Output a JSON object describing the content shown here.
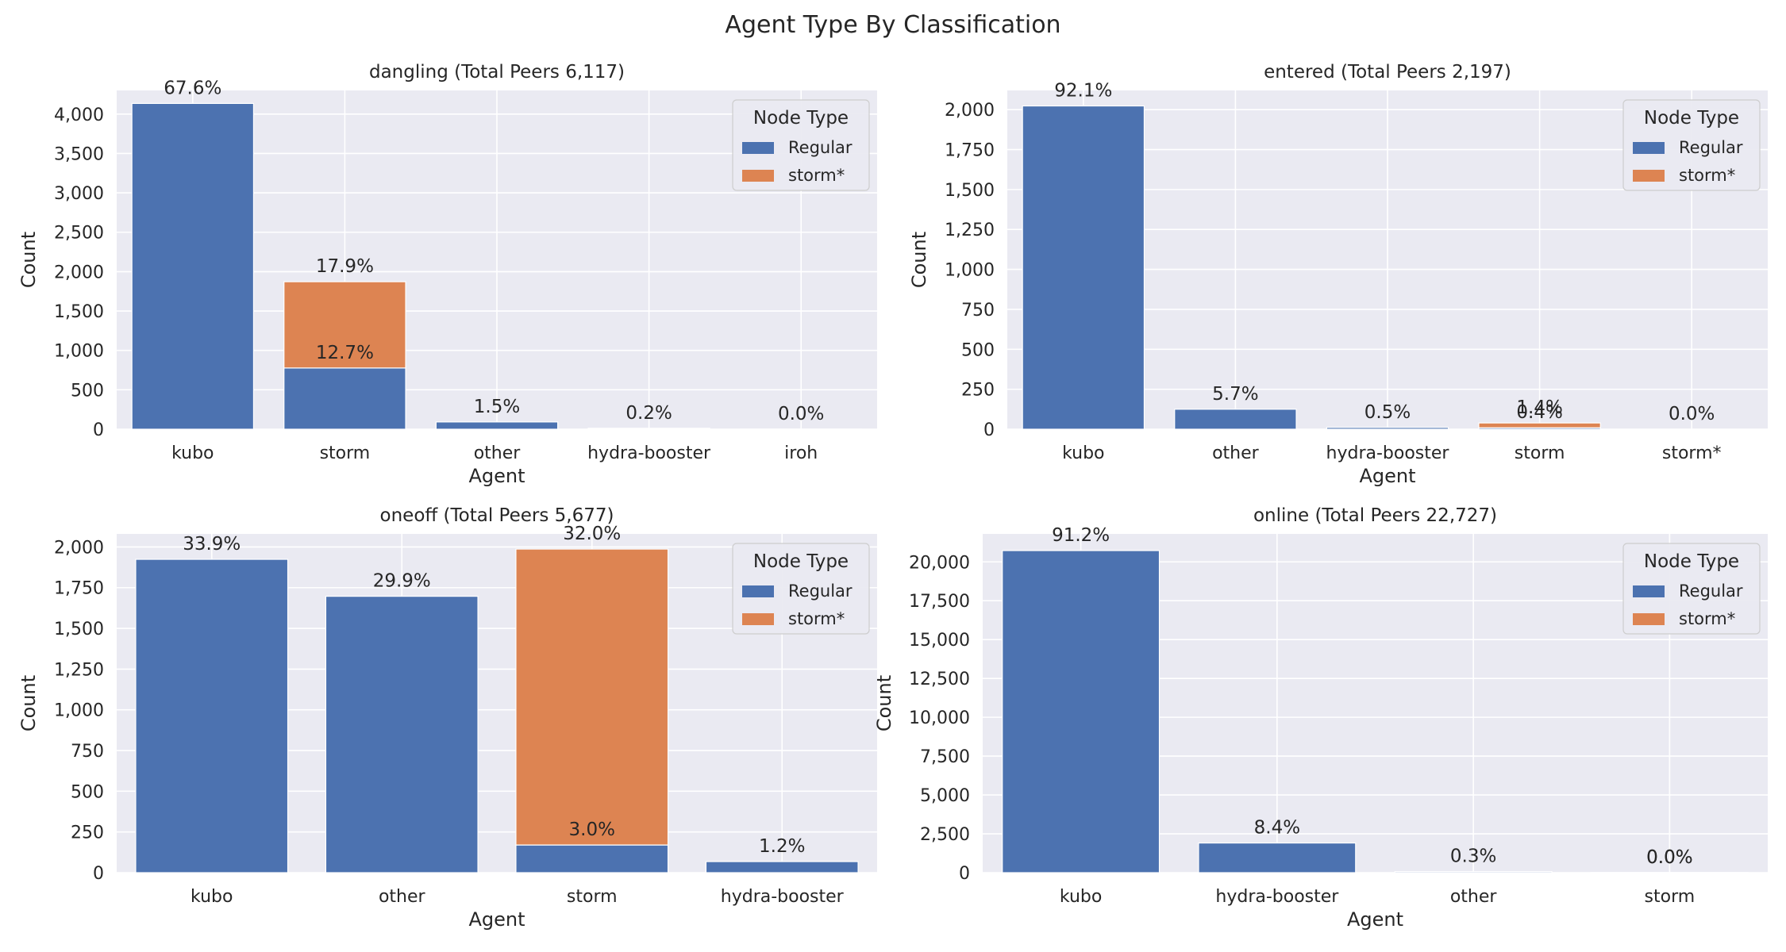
{
  "figure": {
    "title": "Agent Type By Classification",
    "colors": {
      "regular": "#4C72B0",
      "storm": "#DD8452",
      "background": "#EAEAF2",
      "grid": "#FFFFFF",
      "text": "#262626"
    }
  },
  "chart_data": [
    {
      "type": "bar",
      "stacked": true,
      "title": "dangling (Total Peers 6,117)",
      "xlabel": "Agent",
      "ylabel": "Count",
      "categories": [
        "kubo",
        "storm",
        "other",
        "hydra-booster",
        "iroh"
      ],
      "ylim": [
        0,
        4300
      ],
      "yticks": [
        0,
        500,
        1000,
        1500,
        2000,
        2500,
        3000,
        3500,
        4000
      ],
      "ytick_labels": [
        "0",
        "500",
        "1,000",
        "1,500",
        "2,000",
        "2,500",
        "3,000",
        "3,500",
        "4,000"
      ],
      "series": [
        {
          "name": "Regular",
          "values": [
            4135,
            777,
            92,
            12,
            1
          ]
        },
        {
          "name": "storm*",
          "values": [
            0,
            1095,
            0,
            0,
            0
          ]
        }
      ],
      "annotations": [
        {
          "category": "kubo",
          "level": 4135,
          "text": "67.6%"
        },
        {
          "category": "storm",
          "level": 777,
          "text": "12.7%"
        },
        {
          "category": "storm",
          "level": 1872,
          "text": "17.9%"
        },
        {
          "category": "other",
          "level": 92,
          "text": "1.5%"
        },
        {
          "category": "hydra-booster",
          "level": 12,
          "text": "0.2%"
        },
        {
          "category": "iroh",
          "level": 1,
          "text": "0.0%"
        }
      ],
      "legend": {
        "title": "Node Type",
        "location": "upper right",
        "entries": [
          "Regular",
          "storm*"
        ]
      },
      "grid": true
    },
    {
      "type": "bar",
      "stacked": true,
      "title": "entered (Total Peers 2,197)",
      "xlabel": "Agent",
      "ylabel": "Count",
      "categories": [
        "kubo",
        "other",
        "hydra-booster",
        "storm",
        "storm*"
      ],
      "ylim": [
        0,
        2120
      ],
      "yticks": [
        0,
        250,
        500,
        750,
        1000,
        1250,
        1500,
        1750,
        2000
      ],
      "ytick_labels": [
        "0",
        "250",
        "500",
        "750",
        "1,000",
        "1,250",
        "1,500",
        "1,750",
        "2,000"
      ],
      "series": [
        {
          "name": "Regular",
          "values": [
            2023,
            125,
            11,
            9,
            0
          ]
        },
        {
          "name": "storm*",
          "values": [
            0,
            0,
            0,
            30,
            0
          ]
        }
      ],
      "annotations": [
        {
          "category": "kubo",
          "level": 2023,
          "text": "92.1%"
        },
        {
          "category": "other",
          "level": 125,
          "text": "5.7%"
        },
        {
          "category": "hydra-booster",
          "level": 11,
          "text": "0.5%"
        },
        {
          "category": "storm",
          "level": 9,
          "text": "0.4%"
        },
        {
          "category": "storm",
          "level": 39,
          "text": "1.4%"
        },
        {
          "category": "storm*",
          "level": 0,
          "text": "0.0%"
        }
      ],
      "legend": {
        "title": "Node Type",
        "location": "upper right",
        "entries": [
          "Regular",
          "storm*"
        ]
      },
      "grid": true
    },
    {
      "type": "bar",
      "stacked": true,
      "title": "oneoff (Total Peers 5,677)",
      "xlabel": "Agent",
      "ylabel": "Count",
      "categories": [
        "kubo",
        "other",
        "storm",
        "hydra-booster"
      ],
      "ylim": [
        0,
        2080
      ],
      "yticks": [
        0,
        250,
        500,
        750,
        1000,
        1250,
        1500,
        1750,
        2000
      ],
      "ytick_labels": [
        "0",
        "250",
        "500",
        "750",
        "1,000",
        "1,250",
        "1,500",
        "1,750",
        "2,000"
      ],
      "series": [
        {
          "name": "Regular",
          "values": [
            1924,
            1697,
            170,
            68
          ]
        },
        {
          "name": "storm*",
          "values": [
            0,
            0,
            1817,
            0
          ]
        }
      ],
      "annotations": [
        {
          "category": "kubo",
          "level": 1924,
          "text": "33.9%"
        },
        {
          "category": "other",
          "level": 1697,
          "text": "29.9%"
        },
        {
          "category": "storm",
          "level": 170,
          "text": "3.0%"
        },
        {
          "category": "storm",
          "level": 1987,
          "text": "32.0%"
        },
        {
          "category": "hydra-booster",
          "level": 68,
          "text": "1.2%"
        }
      ],
      "legend": {
        "title": "Node Type",
        "location": "upper right",
        "entries": [
          "Regular",
          "storm*"
        ]
      },
      "grid": true
    },
    {
      "type": "bar",
      "stacked": true,
      "title": "online (Total Peers 22,727)",
      "xlabel": "Agent",
      "ylabel": "Count",
      "categories": [
        "kubo",
        "hydra-booster",
        "other",
        "storm"
      ],
      "ylim": [
        0,
        21800
      ],
      "yticks": [
        0,
        2500,
        5000,
        7500,
        10000,
        12500,
        15000,
        17500,
        20000
      ],
      "ytick_labels": [
        "0",
        "2,500",
        "5,000",
        "7,500",
        "10,000",
        "12,500",
        "15,000",
        "17,500",
        "20,000"
      ],
      "series": [
        {
          "name": "Regular",
          "values": [
            20727,
            1909,
            68,
            2
          ]
        },
        {
          "name": "storm*",
          "values": [
            0,
            0,
            0,
            5
          ]
        }
      ],
      "annotations": [
        {
          "category": "kubo",
          "level": 20727,
          "text": "91.2%"
        },
        {
          "category": "hydra-booster",
          "level": 1909,
          "text": "8.4%"
        },
        {
          "category": "other",
          "level": 68,
          "text": "0.3%"
        },
        {
          "category": "storm",
          "level": 2,
          "text": "0.0%"
        },
        {
          "category": "storm",
          "level": 7,
          "text": "0.0%"
        }
      ],
      "legend": {
        "title": "Node Type",
        "location": "upper right",
        "entries": [
          "Regular",
          "storm*"
        ]
      },
      "grid": true
    }
  ]
}
